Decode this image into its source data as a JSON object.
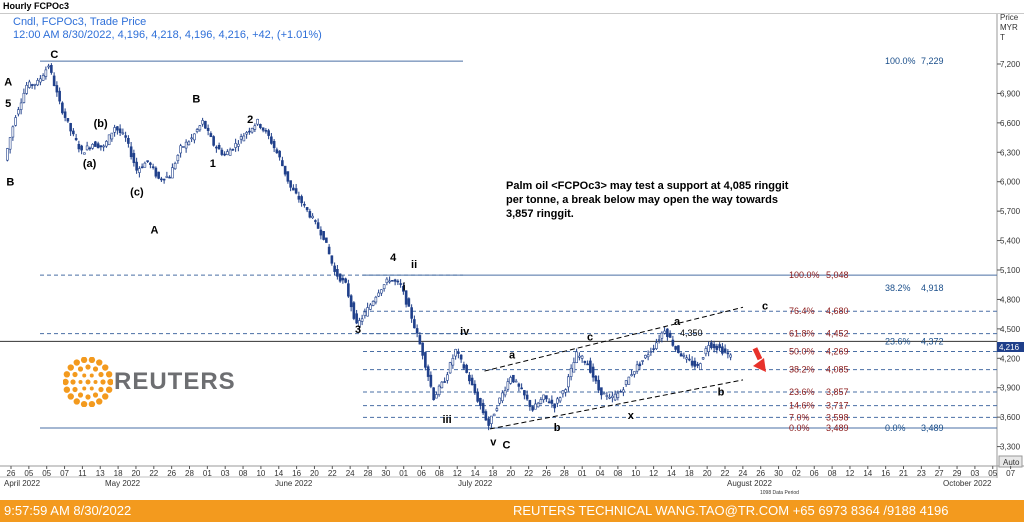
{
  "window": {
    "title": "Hourly FCPOc3"
  },
  "legend": {
    "line1": "Cndl, FCPOc3, Trade Price",
    "line2": "12:00 AM 8/30/2022, 4,196, 4,218, 4,196, 4,216, +42, (+1.01%)"
  },
  "axis": {
    "price_title_1": "Price",
    "price_title_2": "MYR",
    "price_title_3": "T",
    "auto_label": "Auto"
  },
  "annotation": {
    "line1": "Palm oil <FCPOc3> may test a support at 4,085 ringgit",
    "line2": "per tonne, a break below may open the way towards",
    "line3": "3,857 ringgit."
  },
  "peak_label": "4,350",
  "current_price": "4,216",
  "data_period_label": "1098 Data Period",
  "logo": {
    "text": "REUTERS"
  },
  "footer": {
    "left": "9:57:59 AM 8/30/2022",
    "center": "REUTERS TECHNICAL  WANG.TAO@TR.COM  +65 6973 8364 /9188 4196"
  },
  "colors": {
    "candle": "#1f3f8a",
    "fib_red": "#8b1a1a",
    "fib_blue": "#1a4e8a",
    "footer": "#f39a1e",
    "arrow": "#e8322b"
  },
  "chart_data": {
    "type": "candlestick",
    "title": "Hourly FCPOc3",
    "ylabel": "Price MYR T",
    "ylim": [
      3120,
      7520
    ],
    "y_ticks": [
      "7,200",
      "6,900",
      "6,600",
      "6,300",
      "6,000",
      "5,700",
      "5,400",
      "5,100",
      "4,800",
      "4,500",
      "4,200",
      "3,900",
      "3,600",
      "3,300"
    ],
    "x_ticks": [
      "26",
      "05",
      "05",
      "07",
      "11",
      "13",
      "18",
      "20",
      "22",
      "26",
      "28",
      "01",
      "03",
      "08",
      "10",
      "14",
      "16",
      "20",
      "22",
      "24",
      "28",
      "30",
      "01",
      "06",
      "08",
      "12",
      "14",
      "18",
      "20",
      "22",
      "26",
      "28",
      "01",
      "04",
      "08",
      "10",
      "12",
      "14",
      "18",
      "20",
      "22",
      "24",
      "26",
      "30",
      "02",
      "06",
      "08",
      "12",
      "14",
      "16",
      "21",
      "23",
      "27",
      "29",
      "03",
      "05",
      "07"
    ],
    "month_labels": [
      "April 2022",
      "May 2022",
      "June 2022",
      "July 2022",
      "August 2022",
      "October 2022"
    ],
    "price_path": [
      {
        "t": 0,
        "p": 6220
      },
      {
        "t": 1,
        "p": 6680
      },
      {
        "t": 2,
        "p": 6980
      },
      {
        "t": 3,
        "p": 7010
      },
      {
        "t": 4,
        "p": 7190
      },
      {
        "t": 5,
        "p": 6800
      },
      {
        "t": 6,
        "p": 6520
      },
      {
        "t": 7,
        "p": 6300
      },
      {
        "t": 8,
        "p": 6390
      },
      {
        "t": 9,
        "p": 6350
      },
      {
        "t": 10,
        "p": 6560
      },
      {
        "t": 11,
        "p": 6440
      },
      {
        "t": 12,
        "p": 6120
      },
      {
        "t": 13,
        "p": 6210
      },
      {
        "t": 14,
        "p": 6030
      },
      {
        "t": 15,
        "p": 6060
      },
      {
        "t": 16,
        "p": 6340
      },
      {
        "t": 17,
        "p": 6440
      },
      {
        "t": 18,
        "p": 6610
      },
      {
        "t": 19,
        "p": 6380
      },
      {
        "t": 20,
        "p": 6270
      },
      {
        "t": 21,
        "p": 6380
      },
      {
        "t": 22,
        "p": 6510
      },
      {
        "t": 23,
        "p": 6610
      },
      {
        "t": 24,
        "p": 6460
      },
      {
        "t": 25,
        "p": 6240
      },
      {
        "t": 26,
        "p": 5940
      },
      {
        "t": 27,
        "p": 5790
      },
      {
        "t": 28,
        "p": 5620
      },
      {
        "t": 29,
        "p": 5440
      },
      {
        "t": 30,
        "p": 5080
      },
      {
        "t": 31,
        "p": 4950
      },
      {
        "t": 32,
        "p": 4530
      },
      {
        "t": 33,
        "p": 4700
      },
      {
        "t": 34,
        "p": 4890
      },
      {
        "t": 35,
        "p": 5010
      },
      {
        "t": 36,
        "p": 4940
      },
      {
        "t": 37,
        "p": 4620
      },
      {
        "t": 38,
        "p": 4250
      },
      {
        "t": 39,
        "p": 3800
      },
      {
        "t": 40,
        "p": 3980
      },
      {
        "t": 41,
        "p": 4280
      },
      {
        "t": 42,
        "p": 4050
      },
      {
        "t": 43,
        "p": 3780
      },
      {
        "t": 44,
        "p": 3520
      },
      {
        "t": 45,
        "p": 3780
      },
      {
        "t": 46,
        "p": 4020
      },
      {
        "t": 47,
        "p": 3860
      },
      {
        "t": 48,
        "p": 3680
      },
      {
        "t": 49,
        "p": 3800
      },
      {
        "t": 50,
        "p": 3720
      },
      {
        "t": 51,
        "p": 3910
      },
      {
        "t": 52,
        "p": 4240
      },
      {
        "t": 53,
        "p": 4150
      },
      {
        "t": 54,
        "p": 3880
      },
      {
        "t": 55,
        "p": 3780
      },
      {
        "t": 56,
        "p": 3860
      },
      {
        "t": 57,
        "p": 4050
      },
      {
        "t": 58,
        "p": 4180
      },
      {
        "t": 59,
        "p": 4320
      },
      {
        "t": 60,
        "p": 4500
      },
      {
        "t": 61,
        "p": 4300
      },
      {
        "t": 62,
        "p": 4180
      },
      {
        "t": 63,
        "p": 4110
      },
      {
        "t": 64,
        "p": 4350
      },
      {
        "t": 65,
        "p": 4300
      },
      {
        "t": 66,
        "p": 4216
      }
    ],
    "fib_left": [
      {
        "label": "100.0%",
        "value": 5048,
        "text": "5,048"
      },
      {
        "label": "76.4%",
        "value": 4680,
        "text": "4,680"
      },
      {
        "label": "61.8%",
        "value": 4452,
        "text": "4,452"
      },
      {
        "label": "50.0%",
        "value": 4269,
        "text": "4,269"
      },
      {
        "label": "38.2%",
        "value": 4085,
        "text": "4,085"
      },
      {
        "label": "23.6%",
        "value": 3857,
        "text": "3,857"
      },
      {
        "label": "14.6%",
        "value": 3717,
        "text": "3,717"
      },
      {
        "label": "7.0%",
        "value": 3598,
        "text": "3,598"
      },
      {
        "label": "0.0%",
        "value": 3489,
        "text": "3,489"
      }
    ],
    "fib_right": [
      {
        "label": "100.0%",
        "value": 7229,
        "text": "7,229"
      },
      {
        "label": "38.2%",
        "value": 4918,
        "text": "4,918"
      },
      {
        "label": "23.6%",
        "value": 4372,
        "text": "4,372"
      },
      {
        "label": "0.0%",
        "value": 3489,
        "text": "3,489"
      }
    ],
    "wave_labels": [
      {
        "text": "A",
        "t": 0.2,
        "p": 6980
      },
      {
        "text": "5",
        "t": 0.2,
        "p": 6760
      },
      {
        "text": "B",
        "t": 0.4,
        "p": 5960
      },
      {
        "text": "C",
        "t": 4.4,
        "p": 7260
      },
      {
        "text": "(b)",
        "t": 8.6,
        "p": 6560
      },
      {
        "text": "(a)",
        "t": 7.6,
        "p": 6150
      },
      {
        "text": "B",
        "t": 17.3,
        "p": 6810
      },
      {
        "text": "2",
        "t": 22.2,
        "p": 6600
      },
      {
        "text": "1",
        "t": 18.8,
        "p": 6150
      },
      {
        "text": "(c)",
        "t": 11.9,
        "p": 5860
      },
      {
        "text": "A",
        "t": 13.5,
        "p": 5470
      },
      {
        "text": "4",
        "t": 35.2,
        "p": 5190
      },
      {
        "text": "ii",
        "t": 37.1,
        "p": 5120
      },
      {
        "text": "i",
        "t": 36.2,
        "p": 4890
      },
      {
        "text": "3",
        "t": 32.0,
        "p": 4460
      },
      {
        "text": "iv",
        "t": 41.7,
        "p": 4440
      },
      {
        "text": "a",
        "t": 46.0,
        "p": 4200
      },
      {
        "text": "c",
        "t": 53.1,
        "p": 4380
      },
      {
        "text": "a",
        "t": 61.0,
        "p": 4540
      },
      {
        "text": "c",
        "t": 69.0,
        "p": 4700
      },
      {
        "text": "iii",
        "t": 40.1,
        "p": 3540
      },
      {
        "text": "v",
        "t": 44.3,
        "p": 3310
      },
      {
        "text": "C",
        "t": 45.5,
        "p": 3280
      },
      {
        "text": "b",
        "t": 50.1,
        "p": 3460
      },
      {
        "text": "x",
        "t": 56.8,
        "p": 3580
      },
      {
        "text": "b",
        "t": 65.0,
        "p": 3820
      }
    ],
    "channel_upper": [
      [
        43.5,
        4070
      ],
      [
        67.0,
        4720
      ]
    ],
    "channel_lower": [
      [
        44.0,
        3480
      ],
      [
        67.0,
        3980
      ]
    ]
  }
}
